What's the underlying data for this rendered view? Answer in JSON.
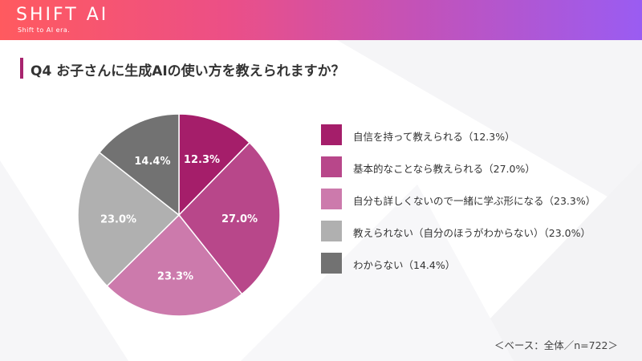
{
  "header": {
    "logo": "SHIFT AI",
    "tagline": "Shift to AI era."
  },
  "title": "Q4 お子さんに生成AIの使い方を教えられますか？",
  "base_note": "＜ベース：全体／n=722＞",
  "chart_data": {
    "type": "pie",
    "categories": [
      "自信を持って教えられる",
      "基本的なことなら教えられる",
      "自分も詳しくないので一緒に学ぶ形になる",
      "教えられない（自分のほうがわからない）",
      "わからない"
    ],
    "values": [
      12.3,
      27.0,
      23.3,
      23.0,
      14.4
    ],
    "value_labels": [
      "12.3%",
      "27.0%",
      "23.3%",
      "23.0%",
      "14.4%"
    ],
    "legend_labels": [
      "自信を持って教えられる（12.3%）",
      "基本的なことなら教えられる（27.0%）",
      "自分も詳しくないので一緒に学ぶ形になる（23.3%）",
      "教えられない（自分のほうがわからない）（23.0%）",
      "わからない（14.4%）"
    ],
    "colors": [
      "#a51e6a",
      "#b8478a",
      "#cc7aac",
      "#b0b0b0",
      "#727272"
    ],
    "legend_placement": "right"
  }
}
